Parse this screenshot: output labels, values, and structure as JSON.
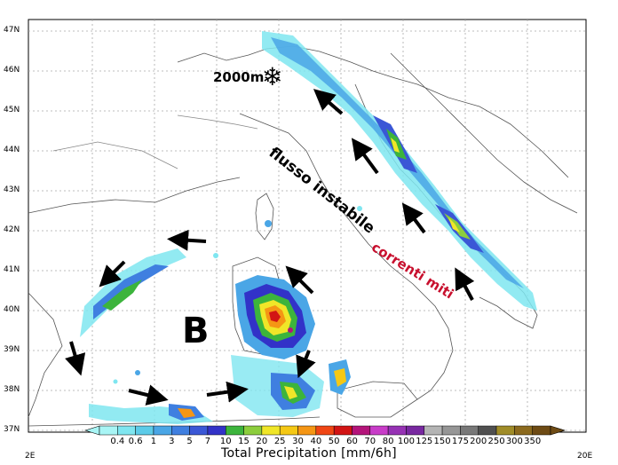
{
  "map": {
    "latitude_labels": [
      "47N",
      "46N",
      "45N",
      "44N",
      "43N",
      "42N",
      "41N",
      "40N",
      "39N",
      "38N",
      "37N"
    ],
    "longitude_labels": [
      "2E",
      "20E"
    ]
  },
  "annotations": {
    "height": "2000m",
    "snow_icon": "snowflake-icon",
    "flux": "flusso instabile",
    "currents": "correnti miti",
    "low_pressure": "B"
  },
  "colorbar": {
    "title": "Total Precipitation [mm/6h]",
    "ticks": [
      "0.4",
      "0.6",
      "1",
      "3",
      "5",
      "7",
      "10",
      "15",
      "20",
      "25",
      "30",
      "40",
      "50",
      "60",
      "70",
      "80",
      "100",
      "125",
      "150",
      "175",
      "200",
      "250",
      "300",
      "350"
    ],
    "colors": [
      "#a8f5f5",
      "#7fe6f0",
      "#5ccbe8",
      "#4aa6e6",
      "#3f7fe0",
      "#3a57d6",
      "#3232c8",
      "#3cb43c",
      "#8ccd3c",
      "#f0e628",
      "#f5c814",
      "#f59614",
      "#f04614",
      "#d21414",
      "#b4147a",
      "#c83cc8",
      "#9632b4",
      "#7828a0",
      "#b4b4b4",
      "#969696",
      "#787878",
      "#505050",
      "#a08c28",
      "#8c6a1e",
      "#6e4b14"
    ],
    "accent_colors": {
      "annotation_red": "#c8102e",
      "sea": "#ffffff",
      "grid": "#a0a0a0"
    }
  }
}
